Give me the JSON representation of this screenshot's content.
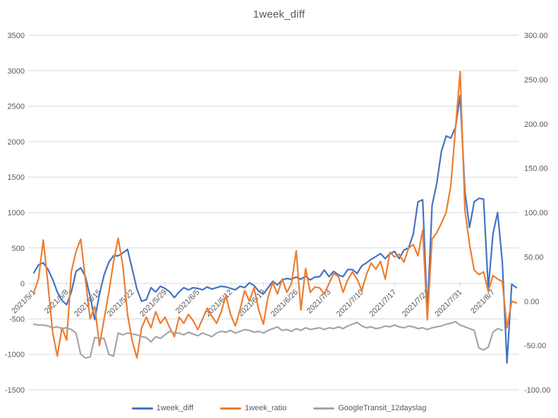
{
  "window": {
    "background": "#ffffff"
  },
  "title": "1week_diff",
  "colors": {
    "series_blue": "#4472C4",
    "series_orange": "#ED7D31",
    "series_gray": "#A5A5A5",
    "gridline": "#D9D9D9",
    "text": "#595959"
  },
  "legend": {
    "position": "bottom",
    "items": [
      {
        "label": "1week_diff",
        "color": "#4472C4"
      },
      {
        "label": "1week_ratio",
        "color": "#ED7D31"
      },
      {
        "label": "GoogleTransit_12dayslag",
        "color": "#A5A5A5"
      }
    ]
  },
  "chart_data": {
    "type": "line",
    "title": "1week_diff",
    "grid": true,
    "legend_position": "bottom",
    "x_start_date": "2021/5/1",
    "x_frequency": "daily",
    "x_tick_labels": [
      "2021/5/1",
      "2021/5/8",
      "2021/5/15",
      "2021/5/22",
      "2021/5/29",
      "2021/6/5",
      "2021/6/12",
      "2021/6/19",
      "2021/6/26",
      "2021/7/3",
      "2021/7/10",
      "2021/7/17",
      "2021/7/24",
      "2021/7/31",
      "2021/8/7"
    ],
    "x_tick_interval_days": 7,
    "left_axis": {
      "min": -1500,
      "max": 3500,
      "ticks": [
        3500,
        3000,
        2500,
        2000,
        1500,
        1000,
        500,
        0,
        -500,
        -1000,
        -1500
      ]
    },
    "right_axis": {
      "min": -100,
      "max": 300,
      "tick_labels": [
        "300.00",
        "250.00",
        "200.00",
        "150.00",
        "100.00",
        "50.00",
        "0.00",
        "-50.00",
        "-100.00"
      ]
    },
    "series": [
      {
        "name": "1week_diff",
        "axis": "left",
        "color": "#4472C4",
        "values": [
          150,
          260,
          290,
          200,
          60,
          -120,
          -240,
          -300,
          -120,
          170,
          220,
          100,
          -180,
          -510,
          -150,
          120,
          300,
          390,
          390,
          430,
          480,
          200,
          -80,
          -250,
          -230,
          -60,
          -120,
          -40,
          -70,
          -120,
          -200,
          -120,
          -60,
          -90,
          -60,
          -70,
          -90,
          -50,
          -80,
          -60,
          -40,
          -50,
          -70,
          -90,
          -40,
          -60,
          10,
          -30,
          -110,
          -150,
          -60,
          30,
          -20,
          50,
          70,
          60,
          90,
          60,
          100,
          50,
          90,
          95,
          190,
          95,
          170,
          120,
          95,
          195,
          195,
          140,
          250,
          290,
          340,
          380,
          420,
          350,
          420,
          450,
          350,
          470,
          500,
          700,
          1150,
          1180,
          -430,
          1100,
          1410,
          1860,
          2080,
          2050,
          2200,
          2650,
          1300,
          790,
          1150,
          1200,
          1190,
          -80,
          700,
          1000,
          300,
          -1120,
          -10,
          -60
        ]
      },
      {
        "name": "1week_ratio",
        "axis": "right",
        "color": "#ED7D31",
        "values": [
          10,
          25,
          69,
          20,
          -35,
          -62,
          -30,
          -44,
          33,
          56,
          70,
          25,
          -20,
          -6,
          -50,
          -20,
          10,
          44,
          71,
          40,
          -15,
          -45,
          -64,
          -30,
          -18,
          -30,
          -12,
          -25,
          -18,
          -30,
          -40,
          -18,
          -25,
          -15,
          -22,
          -32,
          -20,
          -8,
          -17,
          -25,
          -12,
          6,
          -15,
          -28,
          -10,
          12,
          0,
          15,
          -10,
          -26,
          5,
          21,
          8,
          25,
          10,
          20,
          57,
          -10,
          37,
          10,
          16,
          15,
          8,
          20,
          31,
          28,
          10,
          24,
          33,
          25,
          12,
          30,
          43,
          36,
          45,
          25,
          55,
          50,
          53,
          44,
          60,
          64,
          51,
          80,
          -21,
          70,
          77,
          88,
          100,
          130,
          195,
          259,
          103,
          64,
          35,
          30,
          33,
          11,
          29,
          25,
          22,
          -30,
          0,
          -2
        ]
      },
      {
        "name": "GoogleTransit_12dayslag",
        "axis": "right",
        "color": "#A5A5A5",
        "values": [
          -26,
          -27,
          -27,
          -28,
          -30,
          -29,
          -31,
          -30,
          -32,
          -36,
          -60,
          -64,
          -63,
          -41,
          -42,
          -42,
          -60,
          -62,
          -36,
          -38,
          -36,
          -37,
          -38,
          -40,
          -41,
          -46,
          -40,
          -42,
          -38,
          -34,
          -36,
          -36,
          -38,
          -35,
          -37,
          -39,
          -36,
          -38,
          -40,
          -36,
          -34,
          -35,
          -33,
          -36,
          -34,
          -32,
          -33,
          -35,
          -34,
          -36,
          -33,
          -31,
          -29,
          -33,
          -32,
          -34,
          -31,
          -33,
          -30,
          -32,
          -31,
          -30,
          -32,
          -30,
          -31,
          -29,
          -31,
          -28,
          -26,
          -24,
          -28,
          -30,
          -29,
          -31,
          -30,
          -28,
          -29,
          -27,
          -29,
          -30,
          -28,
          -29,
          -31,
          -30,
          -32,
          -30,
          -29,
          -28,
          -26,
          -25,
          -23,
          -27,
          -29,
          -31,
          -33,
          -53,
          -55,
          -52,
          -35,
          -31,
          -33,
          null,
          null,
          null
        ]
      }
    ]
  }
}
